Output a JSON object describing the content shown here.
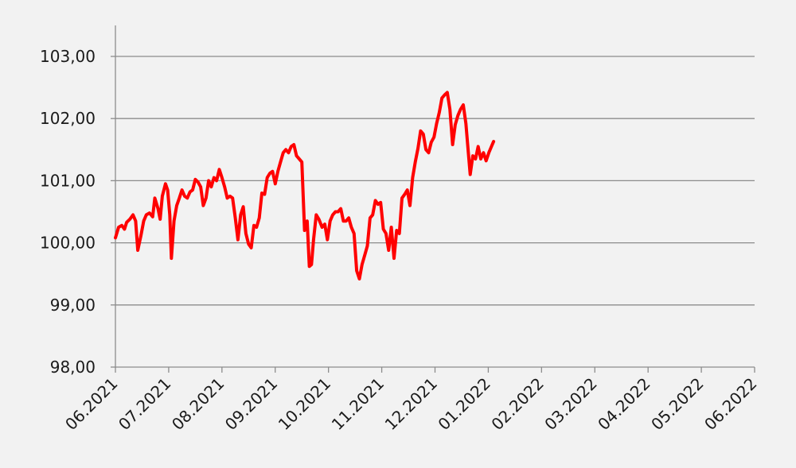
{
  "chart_data": {
    "type": "line",
    "title": "",
    "xlabel": "",
    "ylabel": "",
    "ylim": [
      98.0,
      103.5
    ],
    "y_ticks": [
      "98,00",
      "99,00",
      "100,00",
      "101,00",
      "102,00",
      "103,00"
    ],
    "x_ticks": [
      "06.2021",
      "07.2021",
      "08.2021",
      "09.2021",
      "10.2021",
      "11.2021",
      "12.2021",
      "01.2022",
      "02.2022",
      "03.2022",
      "04.2022",
      "05.2022",
      "06.2022"
    ],
    "grid": "horizontal",
    "legend": "none",
    "line_color": "#ff0000",
    "series": [
      {
        "values": [
          [
            0.0,
            100.08
          ],
          [
            0.06,
            100.25
          ],
          [
            0.12,
            100.28
          ],
          [
            0.17,
            100.22
          ],
          [
            0.21,
            100.33
          ],
          [
            0.27,
            100.38
          ],
          [
            0.33,
            100.45
          ],
          [
            0.38,
            100.35
          ],
          [
            0.42,
            99.88
          ],
          [
            0.48,
            100.12
          ],
          [
            0.53,
            100.35
          ],
          [
            0.58,
            100.45
          ],
          [
            0.64,
            100.48
          ],
          [
            0.7,
            100.42
          ],
          [
            0.74,
            100.72
          ],
          [
            0.8,
            100.55
          ],
          [
            0.84,
            100.38
          ],
          [
            0.88,
            100.75
          ],
          [
            0.94,
            100.95
          ],
          [
            0.98,
            100.85
          ],
          [
            1.02,
            100.45
          ],
          [
            1.05,
            99.75
          ],
          [
            1.1,
            100.35
          ],
          [
            1.15,
            100.6
          ],
          [
            1.2,
            100.72
          ],
          [
            1.25,
            100.85
          ],
          [
            1.3,
            100.75
          ],
          [
            1.35,
            100.72
          ],
          [
            1.4,
            100.82
          ],
          [
            1.45,
            100.85
          ],
          [
            1.5,
            101.02
          ],
          [
            1.55,
            100.98
          ],
          [
            1.6,
            100.9
          ],
          [
            1.65,
            100.6
          ],
          [
            1.7,
            100.72
          ],
          [
            1.75,
            101.0
          ],
          [
            1.8,
            100.9
          ],
          [
            1.85,
            101.05
          ],
          [
            1.9,
            101.0
          ],
          [
            1.95,
            101.18
          ],
          [
            2.0,
            101.05
          ],
          [
            2.05,
            100.9
          ],
          [
            2.1,
            100.72
          ],
          [
            2.15,
            100.75
          ],
          [
            2.2,
            100.72
          ],
          [
            2.25,
            100.4
          ],
          [
            2.3,
            100.05
          ],
          [
            2.35,
            100.45
          ],
          [
            2.4,
            100.58
          ],
          [
            2.45,
            100.15
          ],
          [
            2.5,
            99.98
          ],
          [
            2.55,
            99.92
          ],
          [
            2.6,
            100.28
          ],
          [
            2.65,
            100.25
          ],
          [
            2.7,
            100.4
          ],
          [
            2.75,
            100.8
          ],
          [
            2.8,
            100.78
          ],
          [
            2.85,
            101.05
          ],
          [
            2.9,
            101.12
          ],
          [
            2.95,
            101.15
          ],
          [
            3.0,
            100.95
          ],
          [
            3.05,
            101.15
          ],
          [
            3.1,
            101.3
          ],
          [
            3.15,
            101.45
          ],
          [
            3.2,
            101.5
          ],
          [
            3.25,
            101.45
          ],
          [
            3.3,
            101.55
          ],
          [
            3.35,
            101.58
          ],
          [
            3.4,
            101.4
          ],
          [
            3.45,
            101.35
          ],
          [
            3.5,
            101.3
          ],
          [
            3.55,
            100.2
          ],
          [
            3.6,
            100.35
          ],
          [
            3.64,
            99.62
          ],
          [
            3.68,
            99.65
          ],
          [
            3.72,
            100.05
          ],
          [
            3.77,
            100.45
          ],
          [
            3.82,
            100.38
          ],
          [
            3.88,
            100.25
          ],
          [
            3.93,
            100.3
          ],
          [
            3.98,
            100.05
          ],
          [
            4.03,
            100.35
          ],
          [
            4.08,
            100.45
          ],
          [
            4.13,
            100.5
          ],
          [
            4.18,
            100.5
          ],
          [
            4.23,
            100.55
          ],
          [
            4.28,
            100.35
          ],
          [
            4.33,
            100.35
          ],
          [
            4.38,
            100.4
          ],
          [
            4.43,
            100.25
          ],
          [
            4.48,
            100.15
          ],
          [
            4.53,
            99.55
          ],
          [
            4.58,
            99.42
          ],
          [
            4.63,
            99.65
          ],
          [
            4.68,
            99.8
          ],
          [
            4.73,
            99.95
          ],
          [
            4.78,
            100.4
          ],
          [
            4.83,
            100.45
          ],
          [
            4.88,
            100.68
          ],
          [
            4.93,
            100.62
          ],
          [
            4.98,
            100.65
          ],
          [
            5.03,
            100.22
          ],
          [
            5.08,
            100.15
          ],
          [
            5.13,
            99.88
          ],
          [
            5.18,
            100.25
          ],
          [
            5.23,
            99.75
          ],
          [
            5.28,
            100.2
          ],
          [
            5.33,
            100.15
          ],
          [
            5.38,
            100.72
          ],
          [
            5.43,
            100.78
          ],
          [
            5.48,
            100.85
          ],
          [
            5.53,
            100.6
          ],
          [
            5.58,
            101.05
          ],
          [
            5.63,
            101.3
          ],
          [
            5.68,
            101.52
          ],
          [
            5.73,
            101.8
          ],
          [
            5.78,
            101.75
          ],
          [
            5.83,
            101.5
          ],
          [
            5.88,
            101.45
          ],
          [
            5.93,
            101.62
          ],
          [
            5.98,
            101.7
          ],
          [
            6.03,
            101.92
          ],
          [
            6.08,
            102.1
          ],
          [
            6.13,
            102.33
          ],
          [
            6.18,
            102.38
          ],
          [
            6.23,
            102.42
          ],
          [
            6.28,
            102.15
          ],
          [
            6.33,
            101.58
          ],
          [
            6.38,
            101.9
          ],
          [
            6.43,
            102.05
          ],
          [
            6.48,
            102.15
          ],
          [
            6.53,
            102.22
          ],
          [
            6.58,
            101.92
          ],
          [
            6.63,
            101.4
          ],
          [
            6.66,
            101.1
          ],
          [
            6.71,
            101.4
          ],
          [
            6.76,
            101.35
          ],
          [
            6.81,
            101.55
          ],
          [
            6.86,
            101.35
          ],
          [
            6.91,
            101.45
          ],
          [
            6.96,
            101.32
          ],
          [
            7.01,
            101.45
          ],
          [
            7.06,
            101.55
          ],
          [
            7.1,
            101.63
          ]
        ]
      }
    ]
  }
}
